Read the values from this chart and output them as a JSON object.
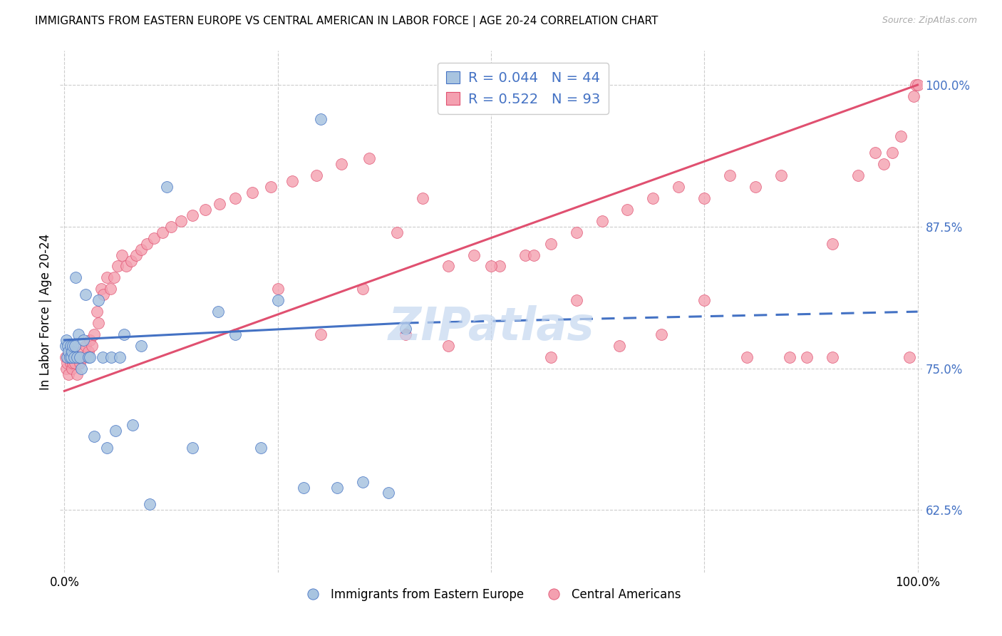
{
  "title": "IMMIGRANTS FROM EASTERN EUROPE VS CENTRAL AMERICAN IN LABOR FORCE | AGE 20-24 CORRELATION CHART",
  "source": "Source: ZipAtlas.com",
  "ylabel": "In Labor Force | Age 20-24",
  "blue_R": 0.044,
  "blue_N": 44,
  "pink_R": 0.522,
  "pink_N": 93,
  "blue_color": "#A8C4E0",
  "pink_color": "#F4A0B0",
  "blue_line_color": "#4472C4",
  "pink_line_color": "#E05070",
  "text_color": "#4472C4",
  "background_color": "#FFFFFF",
  "grid_color": "#CCCCCC",
  "watermark": "ZIPatlas",
  "watermark_color": "#C5D8F0",
  "xlim": [
    0.0,
    1.0
  ],
  "ylim": [
    0.57,
    1.03
  ],
  "yticks": [
    0.625,
    0.75,
    0.875,
    1.0
  ],
  "ytick_labels": [
    "62.5%",
    "75.0%",
    "87.5%",
    "100.0%"
  ],
  "blue_x": [
    0.001,
    0.002,
    0.003,
    0.004,
    0.005,
    0.006,
    0.007,
    0.008,
    0.009,
    0.01,
    0.011,
    0.012,
    0.013,
    0.015,
    0.016,
    0.018,
    0.02,
    0.022,
    0.025,
    0.028,
    0.03,
    0.035,
    0.04,
    0.045,
    0.05,
    0.055,
    0.06,
    0.065,
    0.07,
    0.08,
    0.09,
    0.1,
    0.12,
    0.15,
    0.18,
    0.2,
    0.23,
    0.25,
    0.28,
    0.3,
    0.32,
    0.35,
    0.38,
    0.4
  ],
  "blue_y": [
    0.77,
    0.775,
    0.76,
    0.77,
    0.765,
    0.76,
    0.77,
    0.76,
    0.765,
    0.77,
    0.76,
    0.77,
    0.83,
    0.76,
    0.78,
    0.76,
    0.75,
    0.775,
    0.815,
    0.76,
    0.76,
    0.69,
    0.81,
    0.76,
    0.68,
    0.76,
    0.695,
    0.76,
    0.78,
    0.7,
    0.77,
    0.63,
    0.91,
    0.68,
    0.8,
    0.78,
    0.68,
    0.81,
    0.645,
    0.97,
    0.645,
    0.65,
    0.64,
    0.785
  ],
  "pink_x": [
    0.001,
    0.002,
    0.003,
    0.004,
    0.005,
    0.006,
    0.007,
    0.008,
    0.009,
    0.01,
    0.011,
    0.012,
    0.013,
    0.015,
    0.016,
    0.018,
    0.02,
    0.022,
    0.025,
    0.028,
    0.03,
    0.032,
    0.035,
    0.038,
    0.04,
    0.043,
    0.046,
    0.05,
    0.054,
    0.058,
    0.062,
    0.067,
    0.072,
    0.078,
    0.084,
    0.09,
    0.097,
    0.105,
    0.115,
    0.125,
    0.137,
    0.15,
    0.165,
    0.182,
    0.2,
    0.22,
    0.242,
    0.267,
    0.295,
    0.325,
    0.357,
    0.39,
    0.42,
    0.45,
    0.48,
    0.51,
    0.54,
    0.57,
    0.6,
    0.63,
    0.66,
    0.69,
    0.72,
    0.75,
    0.78,
    0.81,
    0.84,
    0.87,
    0.9,
    0.93,
    0.95,
    0.96,
    0.97,
    0.98,
    0.99,
    0.995,
    0.998,
    0.57,
    0.25,
    0.3,
    0.35,
    0.4,
    0.45,
    0.5,
    0.55,
    0.6,
    0.65,
    0.7,
    0.75,
    0.8,
    0.85,
    0.9,
    1.0
  ],
  "pink_y": [
    0.76,
    0.75,
    0.755,
    0.76,
    0.745,
    0.76,
    0.755,
    0.765,
    0.75,
    0.755,
    0.76,
    0.755,
    0.76,
    0.745,
    0.76,
    0.755,
    0.765,
    0.76,
    0.77,
    0.765,
    0.775,
    0.77,
    0.78,
    0.8,
    0.79,
    0.82,
    0.815,
    0.83,
    0.82,
    0.83,
    0.84,
    0.85,
    0.84,
    0.845,
    0.85,
    0.855,
    0.86,
    0.865,
    0.87,
    0.875,
    0.88,
    0.885,
    0.89,
    0.895,
    0.9,
    0.905,
    0.91,
    0.915,
    0.92,
    0.93,
    0.935,
    0.87,
    0.9,
    0.84,
    0.85,
    0.84,
    0.85,
    0.86,
    0.87,
    0.88,
    0.89,
    0.9,
    0.91,
    0.9,
    0.92,
    0.91,
    0.92,
    0.76,
    0.86,
    0.92,
    0.94,
    0.93,
    0.94,
    0.955,
    0.76,
    0.99,
    1.0,
    0.76,
    0.82,
    0.78,
    0.82,
    0.78,
    0.77,
    0.84,
    0.85,
    0.81,
    0.77,
    0.78,
    0.81,
    0.76,
    0.76,
    0.76,
    1.0
  ],
  "blue_trend": [
    0.0,
    0.4,
    0.775,
    0.79
  ],
  "blue_dash": [
    0.4,
    1.0,
    0.79,
    0.8
  ],
  "pink_trend": [
    0.0,
    1.0,
    0.73,
    1.0
  ]
}
